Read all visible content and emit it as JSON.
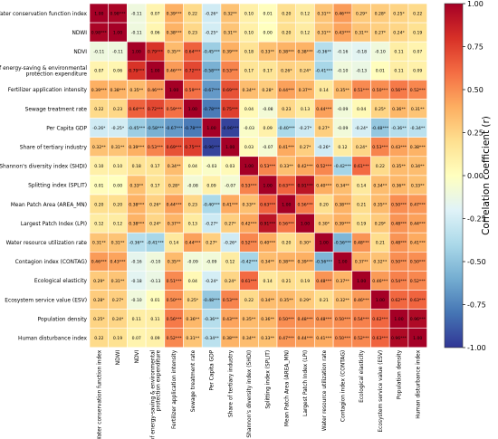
{
  "chart_data": {
    "type": "heatmap",
    "title": "",
    "xlabel": "",
    "ylabel": "",
    "variables": [
      "Water conservation function index",
      "NDWI",
      "NDVI",
      "Share of energy-saving & environmental protection expenditure",
      "Fertilizer application intensity",
      "Sewage treatment rate",
      "Per Capita GDP",
      "Share of tertiary industry",
      "Shannon's diversity index (SHDI)",
      "Splitting index (SPLIT)",
      "Mean Patch Area (AREA_MN)",
      "Largest Patch Index (LPI)",
      "Water resource utilization rate",
      "Contagion index (CONTAG)",
      "Ecological elasticity",
      "Ecosystem service value (ESV)",
      "Population density",
      "Human disturbance index"
    ],
    "cells": [
      [
        "1.00",
        "0.98***",
        "-0.11",
        "0.07",
        "0.39***",
        "0.22",
        "-0.26*",
        "0.32**",
        "0.10",
        "0.01",
        "0.20",
        "0.12",
        "0.31**",
        "0.46***",
        "0.29*",
        "0.28*",
        "0.25*",
        "0.22"
      ],
      [
        "0.98***",
        "1.00",
        "-0.11",
        "0.06",
        "0.38***",
        "0.23",
        "-0.25*",
        "0.31**",
        "0.10",
        "0.00",
        "0.20",
        "0.12",
        "0.31**",
        "0.43***",
        "0.31**",
        "0.27*",
        "0.24*",
        "0.19"
      ],
      [
        "-0.11",
        "-0.11",
        "1.00",
        "0.79***",
        "0.35**",
        "0.64***",
        "-0.45***",
        "0.39***",
        "0.18",
        "0.33**",
        "0.38***",
        "0.38***",
        "-0.36**",
        "-0.16",
        "-0.18",
        "-0.10",
        "0.11",
        "0.07"
      ],
      [
        "0.07",
        "0.06",
        "0.79***",
        "1.00",
        "0.46***",
        "0.72***",
        "-0.58***",
        "0.53***",
        "0.17",
        "0.17",
        "0.26*",
        "0.24*",
        "-0.41***",
        "-0.10",
        "-0.13",
        "0.01",
        "0.11",
        "0.09"
      ],
      [
        "0.39***",
        "0.38***",
        "0.35**",
        "0.46***",
        "1.00",
        "0.59***",
        "-0.67***",
        "0.69***",
        "0.34**",
        "0.28*",
        "0.44***",
        "0.37**",
        "0.14",
        "0.35**",
        "0.51***",
        "0.50***",
        "0.56***",
        "0.52***"
      ],
      [
        "0.22",
        "0.23",
        "0.64***",
        "0.72***",
        "0.59***",
        "1.00",
        "-0.78***",
        "0.75***",
        "0.04",
        "-0.08",
        "0.23",
        "0.13",
        "0.44***",
        "-0.09",
        "0.04",
        "0.25*",
        "0.36**",
        "0.31**"
      ],
      [
        "-0.26*",
        "-0.25*",
        "-0.45***",
        "-0.58***",
        "-0.67***",
        "-0.78***",
        "1.00",
        "-0.96***",
        "-0.03",
        "0.09",
        "-0.40***",
        "-0.27*",
        "0.27*",
        "-0.09",
        "-0.24*",
        "-0.48***",
        "-0.36**",
        "-0.34**"
      ],
      [
        "0.32**",
        "0.31**",
        "0.39***",
        "0.53***",
        "0.69***",
        "0.75***",
        "-0.96***",
        "1.00",
        "0.03",
        "-0.07",
        "0.41***",
        "0.27*",
        "-0.26*",
        "0.12",
        "0.24*",
        "0.53***",
        "0.43***",
        "0.38***"
      ],
      [
        "0.10",
        "0.10",
        "0.18",
        "0.17",
        "0.34**",
        "0.04",
        "-0.03",
        "0.03",
        "1.00",
        "0.53***",
        "0.33**",
        "0.42***",
        "0.52***",
        "-0.42***",
        "0.61***",
        "0.22",
        "0.35**",
        "0.34**"
      ],
      [
        "0.01",
        "0.00",
        "0.33**",
        "0.17",
        "0.28*",
        "-0.08",
        "0.09",
        "-0.07",
        "0.53***",
        "1.00",
        "0.63***",
        "0.91***",
        "0.40***",
        "0.34**",
        "0.14",
        "0.34**",
        "0.36**",
        "0.33**"
      ],
      [
        "0.20",
        "0.20",
        "0.38***",
        "0.26*",
        "0.44***",
        "0.23",
        "-0.40***",
        "0.41***",
        "0.33**",
        "0.63***",
        "1.00",
        "0.56***",
        "0.20",
        "0.38***",
        "0.21",
        "0.35**",
        "0.50***",
        "0.47***"
      ],
      [
        "0.12",
        "0.12",
        "0.38***",
        "0.24*",
        "0.37**",
        "0.13",
        "-0.27*",
        "0.27*",
        "0.42***",
        "0.91***",
        "0.56***",
        "1.00",
        "0.30*",
        "0.39***",
        "0.19",
        "0.29*",
        "0.48***",
        "0.44***"
      ],
      [
        "0.31**",
        "0.31**",
        "-0.36**",
        "-0.41***",
        "0.14",
        "0.44***",
        "0.27*",
        "-0.26*",
        "0.52***",
        "0.40***",
        "0.20",
        "0.30*",
        "1.00",
        "-0.56***",
        "0.48***",
        "0.21",
        "0.48***",
        "0.41***"
      ],
      [
        "0.46***",
        "0.43***",
        "-0.16",
        "-0.10",
        "0.35**",
        "-0.09",
        "-0.09",
        "0.12",
        "-0.42***",
        "0.34**",
        "0.38***",
        "0.39***",
        "-0.56***",
        "1.00",
        "0.37**",
        "0.32**",
        "0.50***",
        "0.50***"
      ],
      [
        "0.29*",
        "0.31**",
        "-0.18",
        "-0.13",
        "0.51***",
        "0.04",
        "-0.24*",
        "0.24*",
        "0.61***",
        "0.14",
        "0.21",
        "0.19",
        "0.48***",
        "0.37**",
        "1.00",
        "0.46***",
        "0.54***",
        "0.52***"
      ],
      [
        "0.28*",
        "0.27*",
        "-0.10",
        "0.01",
        "0.50***",
        "0.25*",
        "-0.48***",
        "0.53***",
        "0.22",
        "0.34**",
        "0.35**",
        "0.29*",
        "0.21",
        "0.32**",
        "0.46***",
        "1.00",
        "0.62***",
        "0.63***"
      ],
      [
        "0.25*",
        "0.24*",
        "0.11",
        "0.11",
        "0.56***",
        "0.36**",
        "-0.36**",
        "0.43***",
        "0.35**",
        "0.36**",
        "0.50***",
        "0.48***",
        "0.48***",
        "0.50***",
        "0.54***",
        "0.62***",
        "1.00",
        "0.96***"
      ],
      [
        "0.22",
        "0.19",
        "0.07",
        "0.09",
        "0.52***",
        "0.31**",
        "-0.34**",
        "0.38***",
        "0.34**",
        "0.33**",
        "0.47***",
        "0.44***",
        "0.41***",
        "0.50***",
        "0.52***",
        "0.63***",
        "0.96***",
        "1.00"
      ]
    ],
    "colorbar": {
      "label": "Correlation coefficient (r)",
      "ticks": [
        "1.00",
        "0.75",
        "0.50",
        "0.25",
        "0.00",
        "-0.25",
        "-0.50",
        "-0.75",
        "-1.00"
      ],
      "range": [
        -1,
        1
      ],
      "colormap": "RdYlBu_r",
      "stops": [
        "#313695",
        "#4575b4",
        "#74add1",
        "#abd9e9",
        "#e0f3f8",
        "#ffffbf",
        "#fee090",
        "#fdae61",
        "#f46d43",
        "#d73027",
        "#a50026"
      ]
    },
    "grid": false,
    "legend": "colorbar-right"
  }
}
